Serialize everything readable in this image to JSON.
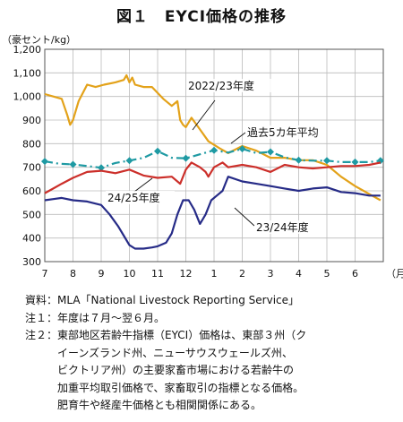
{
  "header": {
    "title": "図１　EYCI価格の推移",
    "unit": "（豪セント/kg）"
  },
  "chart_data": {
    "type": "line",
    "ylim": [
      300,
      1200
    ],
    "yticks": [
      300,
      400,
      500,
      600,
      700,
      800,
      900,
      1000,
      1100,
      1200
    ],
    "ytick_labels": [
      "300",
      "400",
      "500",
      "600",
      "700",
      "800",
      "900",
      "1,000",
      "1,100",
      "1,200"
    ],
    "xlim": [
      0,
      12
    ],
    "xticks": [
      0,
      1,
      2,
      3,
      4,
      5,
      6,
      7,
      8,
      9,
      10,
      11
    ],
    "xtick_labels": [
      "7",
      "8",
      "9",
      "10",
      "11",
      "12",
      "1",
      "2",
      "3",
      "4",
      "5",
      "6"
    ],
    "x_unit_label": "（月）",
    "grid": true,
    "series": [
      {
        "name": "2022/23年度",
        "color": "#e3a21a",
        "x": [
          0,
          0.3,
          0.6,
          0.8,
          0.9,
          1.0,
          1.2,
          1.5,
          1.8,
          2.1,
          2.5,
          2.8,
          2.9,
          3.0,
          3.1,
          3.2,
          3.5,
          3.8,
          4.2,
          4.5,
          4.7,
          4.8,
          4.9,
          5.0,
          5.2,
          5.5,
          5.8,
          6.2,
          6.5,
          7.0,
          7.5,
          8.0,
          8.5,
          9.0,
          9.5,
          10.0,
          10.5,
          11.0,
          11.3,
          11.6,
          11.9
        ],
        "y": [
          1010,
          1000,
          990,
          920,
          880,
          900,
          980,
          1050,
          1040,
          1050,
          1060,
          1070,
          1090,
          1060,
          1080,
          1050,
          1040,
          1040,
          990,
          960,
          980,
          900,
          880,
          870,
          910,
          860,
          810,
          780,
          760,
          790,
          770,
          740,
          740,
          730,
          730,
          710,
          660,
          620,
          600,
          580,
          560
        ]
      },
      {
        "name": "過去5カ年平均",
        "color": "#1f9aa3",
        "dash": true,
        "x": [
          0,
          0.5,
          1,
          1.5,
          2,
          2.5,
          3,
          3.5,
          4,
          4.5,
          5,
          5.5,
          6,
          6.5,
          7,
          7.5,
          8,
          8.5,
          9,
          9.5,
          10,
          10.5,
          11,
          11.5,
          11.9
        ],
        "y": [
          725,
          715,
          712,
          705,
          698,
          718,
          728,
          740,
          768,
          740,
          738,
          755,
          772,
          762,
          778,
          760,
          765,
          742,
          730,
          728,
          728,
          722,
          722,
          722,
          728
        ]
      },
      {
        "name": "24/25年度",
        "color": "#cc2f2a",
        "x": [
          0,
          0.3,
          0.6,
          1.0,
          1.5,
          2.0,
          2.5,
          3.0,
          3.5,
          4.0,
          4.5,
          4.8,
          5.0,
          5.2,
          5.5,
          5.7,
          5.8,
          6.0,
          6.3,
          6.5,
          7.0,
          7.5,
          8.0,
          8.5,
          9.0,
          9.5,
          10.0,
          10.5,
          11.0,
          11.5,
          11.9
        ],
        "y": [
          590,
          610,
          630,
          655,
          680,
          685,
          675,
          690,
          665,
          655,
          660,
          630,
          690,
          720,
          700,
          680,
          660,
          700,
          720,
          700,
          710,
          700,
          680,
          710,
          700,
          695,
          700,
          705,
          705,
          710,
          720
        ]
      },
      {
        "name": "23/24年度",
        "color": "#262b87",
        "x": [
          0,
          0.3,
          0.6,
          1.0,
          1.5,
          2.0,
          2.3,
          2.6,
          2.8,
          3.0,
          3.2,
          3.5,
          3.8,
          4.0,
          4.3,
          4.5,
          4.7,
          4.9,
          5.1,
          5.3,
          5.5,
          5.7,
          5.9,
          6.1,
          6.3,
          6.5,
          7.0,
          7.5,
          8.0,
          8.5,
          9.0,
          9.5,
          10.0,
          10.5,
          11.0,
          11.5,
          11.9
        ],
        "y": [
          560,
          565,
          570,
          560,
          555,
          540,
          500,
          450,
          410,
          370,
          355,
          355,
          360,
          365,
          380,
          420,
          500,
          560,
          560,
          520,
          460,
          500,
          560,
          580,
          600,
          660,
          640,
          630,
          620,
          610,
          600,
          610,
          615,
          595,
          590,
          580,
          580
        ]
      }
    ],
    "annotations": [
      {
        "text": "2022/23年度",
        "series": "2022/23年度"
      },
      {
        "text": "過去5カ年平均",
        "series": "過去5カ年平均"
      },
      {
        "text": "24/25年度",
        "series": "24/25年度"
      },
      {
        "text": "23/24年度",
        "series": "23/24年度"
      }
    ]
  },
  "notes": [
    {
      "head": "資料：",
      "body": "MLA「National Livestock Reporting Service」"
    },
    {
      "head": "注１：",
      "body": "年度は７月～翌６月。"
    },
    {
      "head": "注２：",
      "body": "東部地区若齢牛指標（EYCI）価格は、東部３州（ク\nイーンズランド州、ニューサウスウェールズ州、\nビクトリア州）の主要家畜市場における若齢牛の\n加重平均取引価格で、家畜取引の指標となる価格。\n肥育牛や経産牛価格とも相関関係にある。"
    }
  ]
}
